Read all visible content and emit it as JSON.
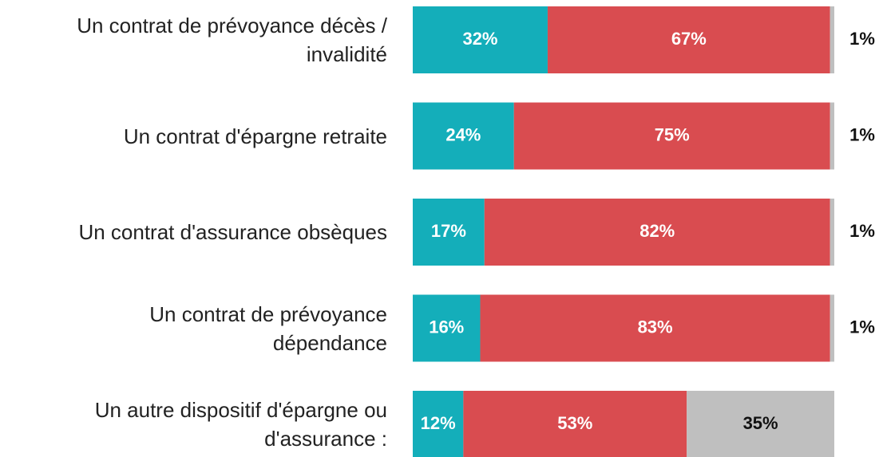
{
  "chart_data": {
    "type": "stacked-bar-horizontal",
    "categories": [
      "Un contrat de prévoyance décès /\ninvalidité",
      "Un contrat d'épargne retraite",
      "Un contrat d'assurance obsèques",
      "Un contrat de prévoyance\ndépendance",
      "Un autre dispositif d'épargne ou\nd'assurance :"
    ],
    "xlim": [
      0,
      100
    ],
    "series": [
      {
        "color": "#14aeba",
        "values": [
          32,
          24,
          17,
          16,
          12
        ],
        "value_labels": [
          "32%",
          "24%",
          "17%",
          "16%",
          "12%"
        ]
      },
      {
        "color": "#d94c50",
        "values": [
          67,
          75,
          82,
          83,
          53
        ],
        "value_labels": [
          "67%",
          "75%",
          "82%",
          "83%",
          "53%"
        ]
      },
      {
        "color": "#bfbfbf",
        "values": [
          1,
          1,
          1,
          1,
          35
        ],
        "value_labels": [
          "1%",
          "1%",
          "1%",
          "1%",
          "35%"
        ]
      }
    ]
  }
}
